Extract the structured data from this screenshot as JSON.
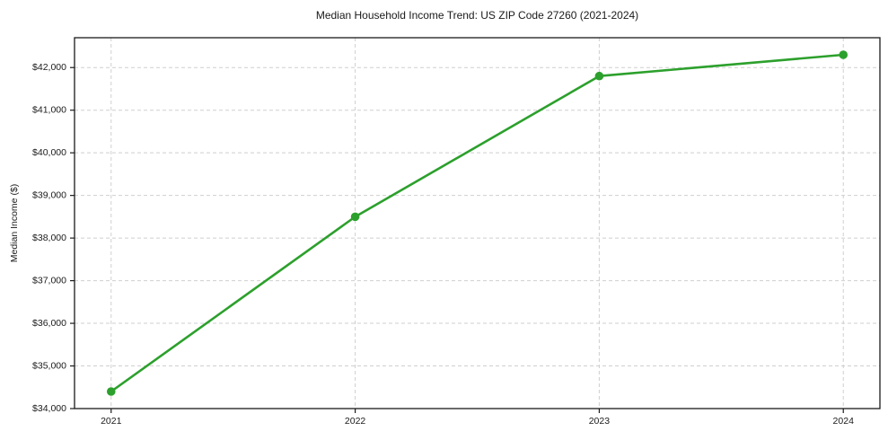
{
  "chart_data": {
    "type": "line",
    "title": "Median Household Income Trend: US ZIP Code 27260 (2021-2024)",
    "xlabel": "",
    "ylabel": "Median Income ($)",
    "categories": [
      "2021",
      "2022",
      "2023",
      "2024"
    ],
    "series": [
      {
        "values": [
          34400,
          38500,
          41800,
          42300
        ],
        "color": "#2ca02c",
        "marker": "circle"
      }
    ],
    "ylim": [
      34000,
      42700
    ],
    "y_ticks": [
      34000,
      35000,
      36000,
      37000,
      38000,
      39000,
      40000,
      41000,
      42000
    ],
    "y_tick_labels": [
      "$34,000",
      "$35,000",
      "$36,000",
      "$37,000",
      "$38,000",
      "$39,000",
      "$40,000",
      "$41,000",
      "$42,000"
    ],
    "grid": true,
    "grid_style": "dashed",
    "legend": false
  },
  "colors": {
    "line": "#2ca02c",
    "marker": "#2ca02c",
    "grid": "#cfcfcf",
    "spine": "#1a1a1a",
    "text": "#1a1a1a",
    "background": "#ffffff"
  }
}
